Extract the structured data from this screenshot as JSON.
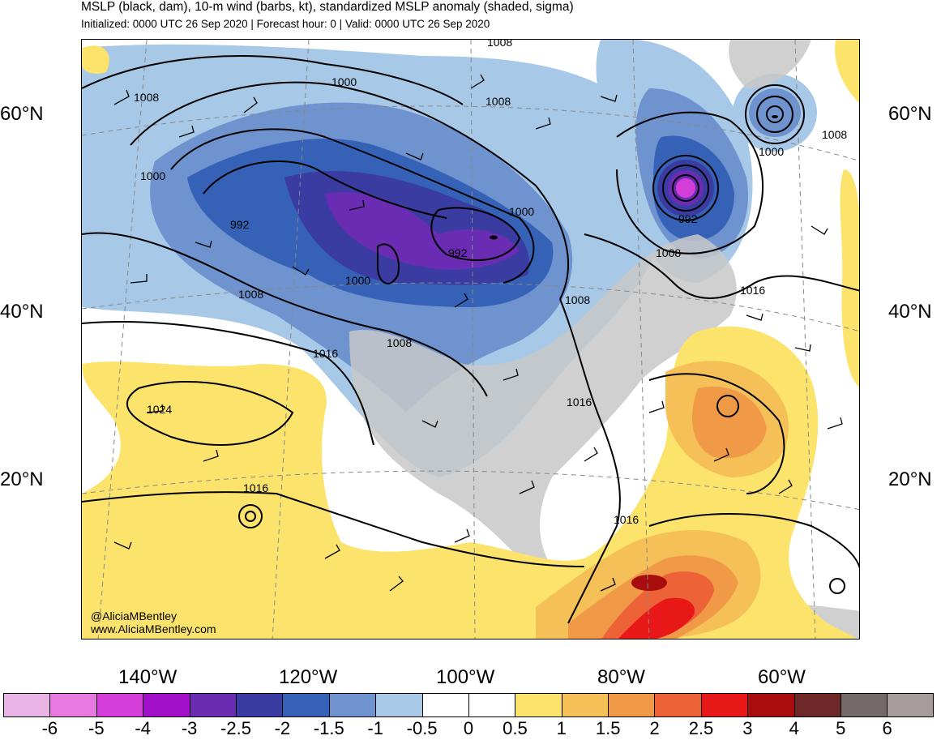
{
  "header": {
    "title": "MSLP (black, dam), 10-m wind (barbs, kt), standardized MSLP anomaly (shaded, sigma)",
    "subtitle": "Initialized: 0000 UTC 26 Sep 2020 | Forecast hour: 0 | Valid: 0000 UTC 26 Sep 2020"
  },
  "map": {
    "lat_labels": [
      "60°N",
      "40°N",
      "20°N"
    ],
    "lon_labels": [
      "140°W",
      "120°W",
      "100°W",
      "80°W",
      "60°W"
    ],
    "isobar_labels": [
      "1000",
      "1008",
      "1008",
      "1000",
      "992",
      "1000",
      "992",
      "1000",
      "1008",
      "1008",
      "1008",
      "1016",
      "1024",
      "1016",
      "1016",
      "1016",
      "1008",
      "1000",
      "992",
      "1008",
      "1016",
      "1008"
    ],
    "credits": {
      "handle": "@AliciaMBentley",
      "site": "www.AliciaMBentley.com"
    },
    "colors": {
      "land": "#c8c8c8",
      "ocean": "#ffffff",
      "isobar": "#000000"
    }
  },
  "colorbar": {
    "ticks": [
      "-6",
      "-5",
      "-4",
      "-3",
      "-2.5",
      "-2",
      "-1.5",
      "-1",
      "-0.5",
      "0",
      "0.5",
      "1",
      "1.5",
      "2",
      "2.5",
      "3",
      "4",
      "5",
      "6"
    ],
    "colors": [
      "#e8b4e6",
      "#e67ae0",
      "#d43ed8",
      "#a20fc8",
      "#6a2cb2",
      "#3a3ca2",
      "#3562b6",
      "#6f93cf",
      "#a7c8e6",
      "#ffffff",
      "#ffffff",
      "#fbe36c",
      "#f5c058",
      "#f09a48",
      "#ee6238",
      "#e81818",
      "#a80c0c",
      "#6e2828",
      "#746a6a",
      "#a69c9c"
    ]
  }
}
